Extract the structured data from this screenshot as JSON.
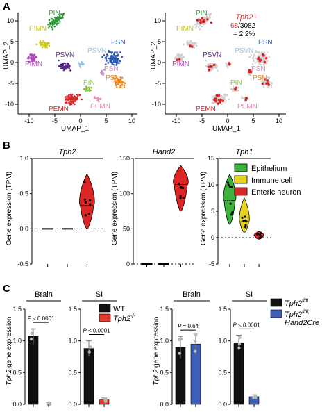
{
  "figure": {
    "panels": {
      "a": {
        "letter": "A"
      },
      "b": {
        "letter": "B"
      },
      "c": {
        "letter": "C"
      }
    }
  },
  "umap": {
    "xlabel": "UMAP_1",
    "ylabel": "UMAP_2",
    "xticks": [
      "-10",
      "-5",
      "0",
      "5",
      "10"
    ],
    "yticks": [
      "10",
      "5",
      "0",
      "-5",
      "-10"
    ],
    "left_clusters": [
      {
        "label": "PIN",
        "color": "#2e9a3a"
      },
      {
        "label": "PIMN",
        "color": "#c8c81e"
      },
      {
        "label": "PIMN",
        "color": "#b04ab8"
      },
      {
        "label": "PSVN",
        "color": "#5a2a8a"
      },
      {
        "label": "PSVN",
        "color": "#8cc8e8"
      },
      {
        "label": "PSN",
        "color": "#2a5ab8"
      },
      {
        "label": "PSN",
        "color": "#c890c8"
      },
      {
        "label": "PSN",
        "color": "#f08a1e"
      },
      {
        "label": "PIN",
        "color": "#8ac83a"
      },
      {
        "label": "PEMN",
        "color": "#d82a2a"
      },
      {
        "label": "PEMN",
        "color": "#e890b8"
      }
    ],
    "right_clusters": [
      "PIN",
      "PIMN",
      "PIMN",
      "PSVN",
      "PSVN",
      "PSN",
      "PSN",
      "PSN",
      "PIN",
      "PEMN",
      "PEMN"
    ],
    "annotation": {
      "gene": "Tph2+",
      "count": "68",
      "total": "/3082",
      "percent": "= 2.2%"
    }
  },
  "violin": {
    "ylabel": "Gene expression (TPM)",
    "panels": [
      {
        "gene": "Tph2",
        "yticks": [
          "1.0",
          "0.5",
          "0.0",
          "-0.5"
        ]
      },
      {
        "gene": "Hand2",
        "yticks": [
          "150",
          "100",
          "50",
          "0"
        ]
      },
      {
        "gene": "Tph1",
        "yticks": [
          "15",
          "10",
          "5",
          "0",
          "-5"
        ]
      }
    ],
    "legend": [
      {
        "label": "Epithelium",
        "color": "#3cb43c"
      },
      {
        "label": "Immune cell",
        "color": "#e8d21e"
      },
      {
        "label": "Enteric neuron",
        "color": "#dc2626"
      }
    ]
  },
  "bars": {
    "ylabel_gene": "Tph2",
    "ylabel_rest": " gene expression",
    "yticks": [
      "1.5",
      "1.0",
      "0.5",
      "0.0"
    ],
    "left": {
      "groups": [
        "Brain",
        "SI"
      ],
      "pvals": [
        "P < 0.0001",
        "P < 0.0001"
      ],
      "legend": [
        {
          "label": "WT",
          "color": "#111111"
        },
        {
          "label": "Tph2",
          "sup": "-/-",
          "color": "#e03a2a"
        }
      ]
    },
    "right": {
      "groups": [
        "Brain",
        "SI"
      ],
      "pvals": [
        "P = 0.64",
        "P < 0.0001"
      ],
      "legend": [
        {
          "label": "Tph2",
          "sup": "fl/fl",
          "color": "#111111"
        },
        {
          "label": "Tph2",
          "sup": "fl/fl",
          "label2": "Hand2Cre",
          "color": "#3f5fb8"
        }
      ]
    }
  },
  "chart_data": [
    {
      "type": "bar",
      "title": "Brain",
      "categories": [
        "WT",
        "Tph2-/-"
      ],
      "values": [
        1.07,
        0.0
      ],
      "ylabel": "Tph2 gene expression",
      "ylim": [
        0,
        1.5
      ]
    },
    {
      "type": "bar",
      "title": "SI",
      "categories": [
        "WT",
        "Tph2-/-"
      ],
      "values": [
        0.88,
        0.07
      ],
      "ylabel": "Tph2 gene expression",
      "ylim": [
        0,
        1.5
      ]
    },
    {
      "type": "bar",
      "title": "Brain",
      "categories": [
        "Tph2fl/fl",
        "Tph2fl/fl; Hand2Cre"
      ],
      "values": [
        0.9,
        0.95
      ],
      "ylabel": "Tph2 gene expression",
      "ylim": [
        0,
        1.5
      ]
    },
    {
      "type": "bar",
      "title": "SI",
      "categories": [
        "Tph2fl/fl",
        "Tph2fl/fl; Hand2Cre"
      ],
      "values": [
        0.97,
        0.12
      ],
      "ylabel": "Tph2 gene expression",
      "ylim": [
        0,
        1.5
      ]
    }
  ]
}
